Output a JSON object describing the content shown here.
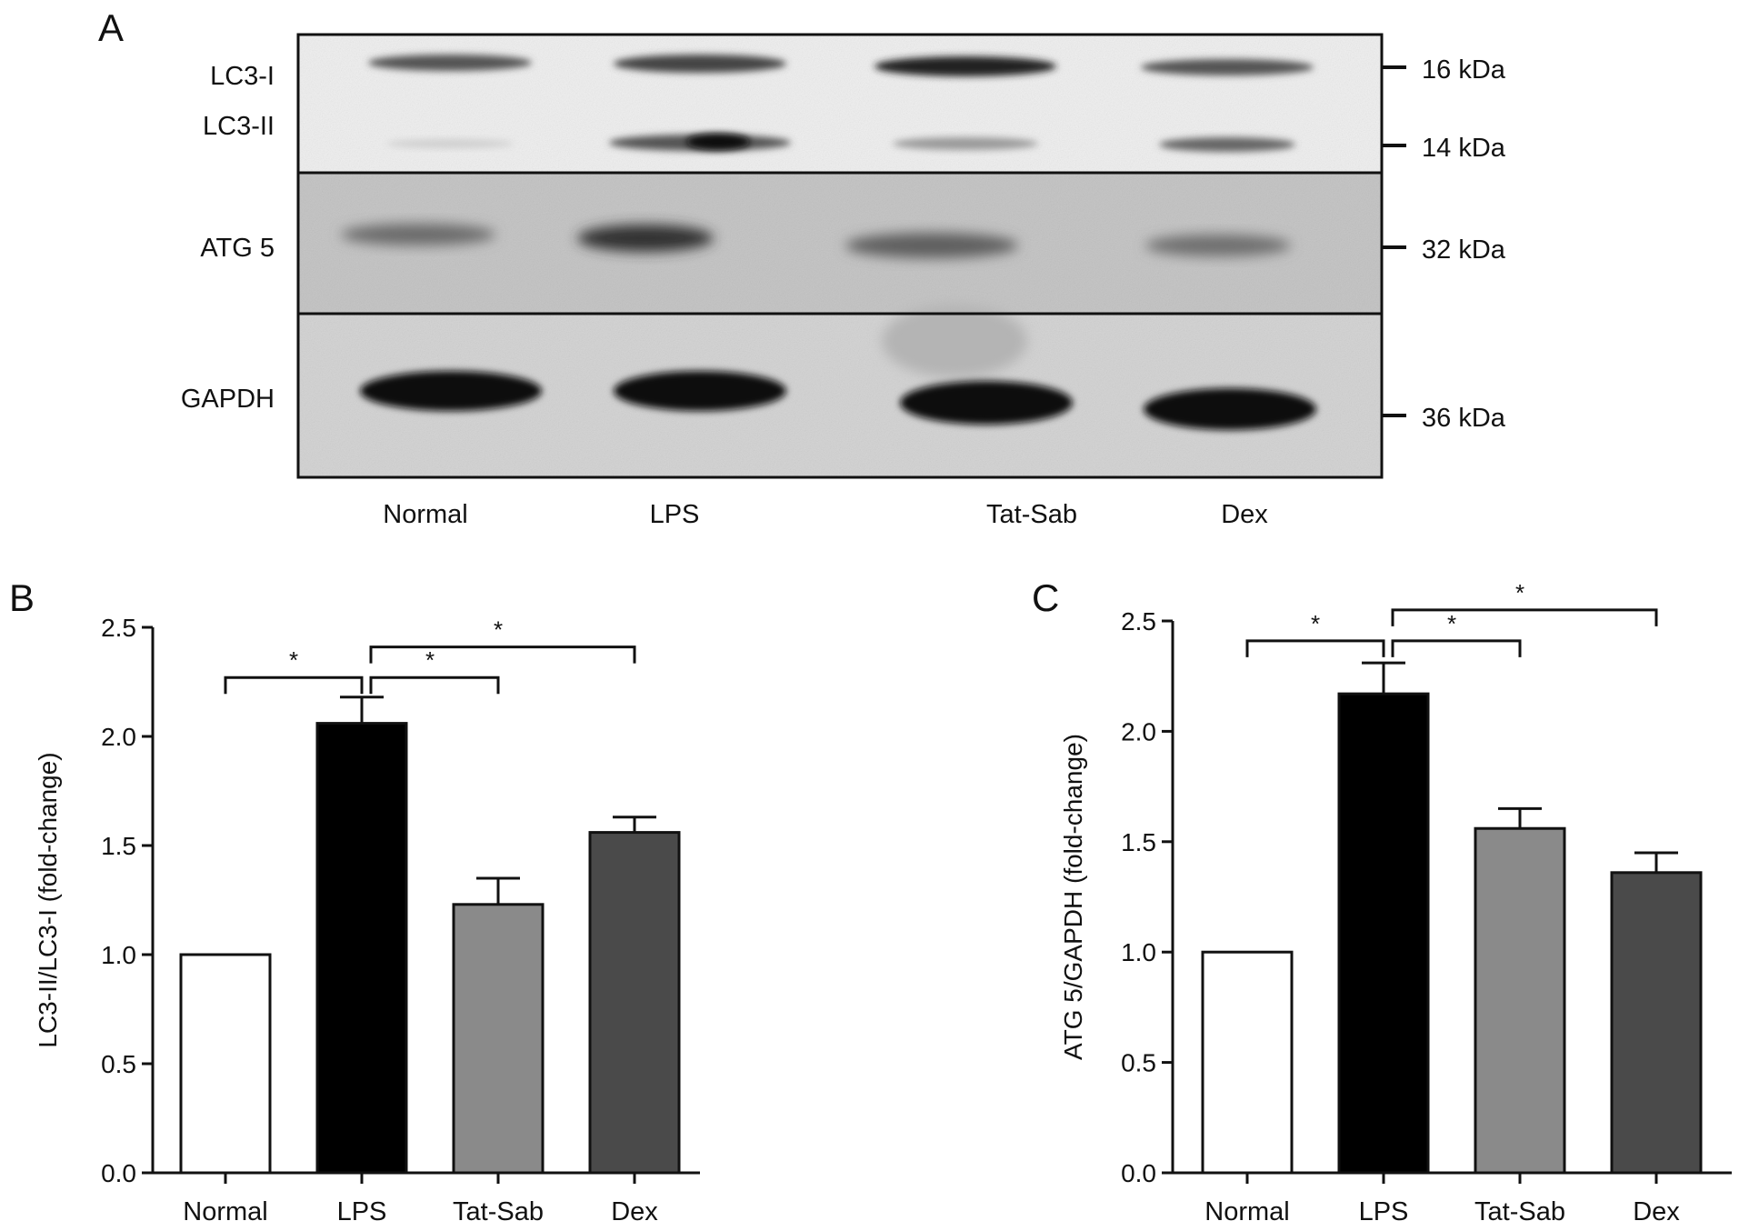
{
  "panel_labels": {
    "a": "A",
    "b": "B",
    "c": "C"
  },
  "blot": {
    "row_labels": [
      "LC3-I",
      "LC3-II",
      "ATG 5",
      "GAPDH"
    ],
    "markers": [
      "16 kDa",
      "14 kDa",
      "32 kDa",
      "36 kDa"
    ],
    "lanes": [
      "Normal",
      "LPS",
      "Tat-Sab",
      "Dex"
    ]
  },
  "chart_data": [
    {
      "type": "bar",
      "panel": "B",
      "categories": [
        "Normal",
        "LPS",
        "Tat-Sab",
        "Dex"
      ],
      "values": [
        1.0,
        2.06,
        1.23,
        1.56
      ],
      "errors": [
        0,
        0.12,
        0.12,
        0.07
      ],
      "bar_colors": [
        "#ffffff",
        "#000000",
        "#8a8a8a",
        "#4a4a4a"
      ],
      "xlabel": "",
      "ylabel": "LC3-II/LC3-I (fold-change)",
      "ylim": [
        0,
        2.5
      ],
      "yticks": [
        "0.0",
        "0.5",
        "1.0",
        "1.5",
        "2.0",
        "2.5"
      ],
      "significance": [
        {
          "from": "Normal",
          "to": "LPS",
          "label": "*",
          "level": 2.27
        },
        {
          "from": "LPS",
          "to": "Tat-Sab",
          "label": "*",
          "level": 2.27
        },
        {
          "from": "LPS",
          "to": "Dex",
          "label": "*",
          "level": 2.41
        }
      ]
    },
    {
      "type": "bar",
      "panel": "C",
      "categories": [
        "Normal",
        "LPS",
        "Tat-Sab",
        "Dex"
      ],
      "values": [
        1.0,
        2.17,
        1.56,
        1.36
      ],
      "errors": [
        0,
        0.14,
        0.09,
        0.09
      ],
      "bar_colors": [
        "#ffffff",
        "#000000",
        "#8a8a8a",
        "#4a4a4a"
      ],
      "xlabel": "",
      "ylabel": "ATG 5/GAPDH (fold-change)",
      "ylim": [
        0,
        2.5
      ],
      "yticks": [
        "0.0",
        "0.5",
        "1.0",
        "1.5",
        "2.0",
        "2.5"
      ],
      "significance": [
        {
          "from": "Normal",
          "to": "LPS",
          "label": "*",
          "level": 2.41
        },
        {
          "from": "LPS",
          "to": "Tat-Sab",
          "label": "*",
          "level": 2.41
        },
        {
          "from": "LPS",
          "to": "Dex",
          "label": "*",
          "level": 2.55
        }
      ]
    }
  ]
}
